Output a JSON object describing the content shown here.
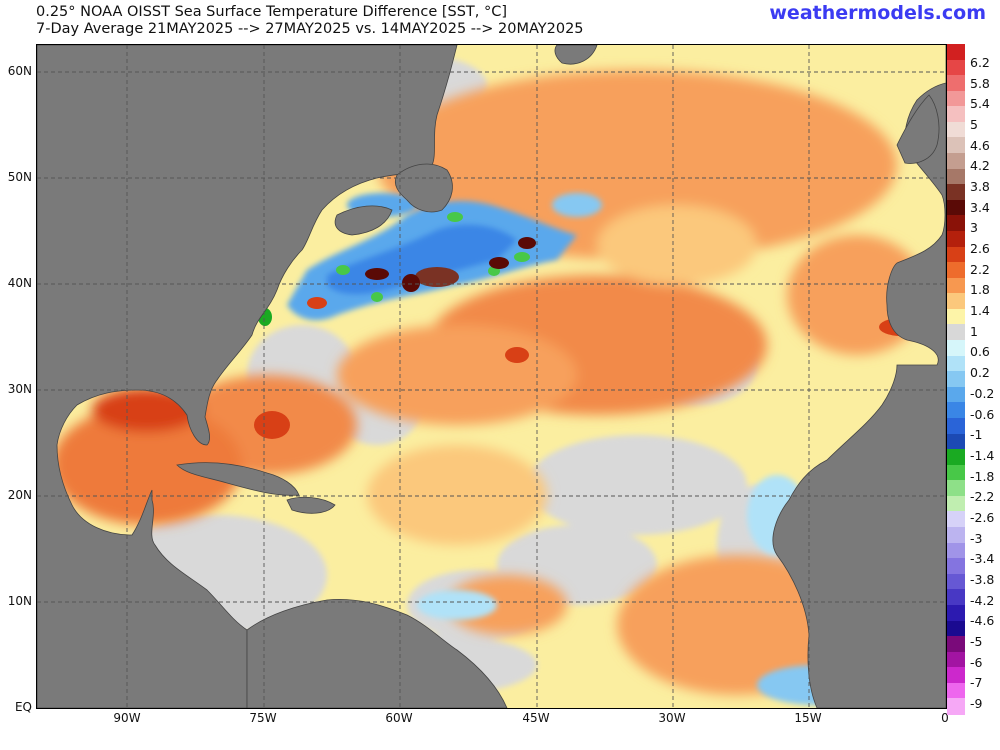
{
  "header": {
    "title_line1": "0.25° NOAA OISST Sea Surface Temperature Difference [SST, °C]",
    "title_line2": "7-Day Average 21MAY2025 --> 27MAY2025  vs. 14MAY2025 --> 20MAY2025",
    "brand": "weathermodels.com"
  },
  "map": {
    "lat_labels": [
      "60N",
      "50N",
      "40N",
      "30N",
      "20N",
      "10N",
      "EQ"
    ],
    "lon_labels": [
      "90W",
      "75W",
      "60W",
      "45W",
      "30W",
      "15W",
      "0"
    ],
    "land_color": "#7a7a7a",
    "neutral_color": "#d9d9d9",
    "grid": true
  },
  "colorbar": {
    "labels": [
      "6.2",
      "5.8",
      "5.4",
      "5",
      "4.6",
      "4.2",
      "3.8",
      "3.4",
      "3",
      "2.6",
      "2.2",
      "1.8",
      "1.4",
      "1",
      "0.6",
      "0.2",
      "-0.2",
      "-0.6",
      "-1",
      "-1.4",
      "-1.8",
      "-2.2",
      "-2.6",
      "-3",
      "-3.4",
      "-3.8",
      "-4.2",
      "-4.6",
      "-5",
      "-6",
      "-7",
      "-9"
    ],
    "colors": [
      "#d22020",
      "#e64646",
      "#ee6e6e",
      "#f29898",
      "#f5c0c0",
      "#f0dcd6",
      "#dcc2b8",
      "#c49e90",
      "#a67868",
      "#7a3224",
      "#5a0a06",
      "#8a1208",
      "#b4200c",
      "#d84016",
      "#ee6c2c",
      "#f79850",
      "#fbc87c",
      "#fdf4a8",
      "#d8d8d8",
      "#d6f6fa",
      "#b0e2f8",
      "#86c8f2",
      "#5aa8ec",
      "#3a86e6",
      "#2a64d8",
      "#1c4ab4",
      "#1aaa22",
      "#48c848",
      "#8ee088",
      "#c0eeb0",
      "#d6d2f8",
      "#bcb4f0",
      "#a094e8",
      "#8474e0",
      "#6658d4",
      "#4838c4",
      "#2c1ab0",
      "#1a0a90",
      "#7a0a7a",
      "#a214a2",
      "#cc28cc",
      "#ee66ee",
      "#f6a8f6"
    ]
  }
}
